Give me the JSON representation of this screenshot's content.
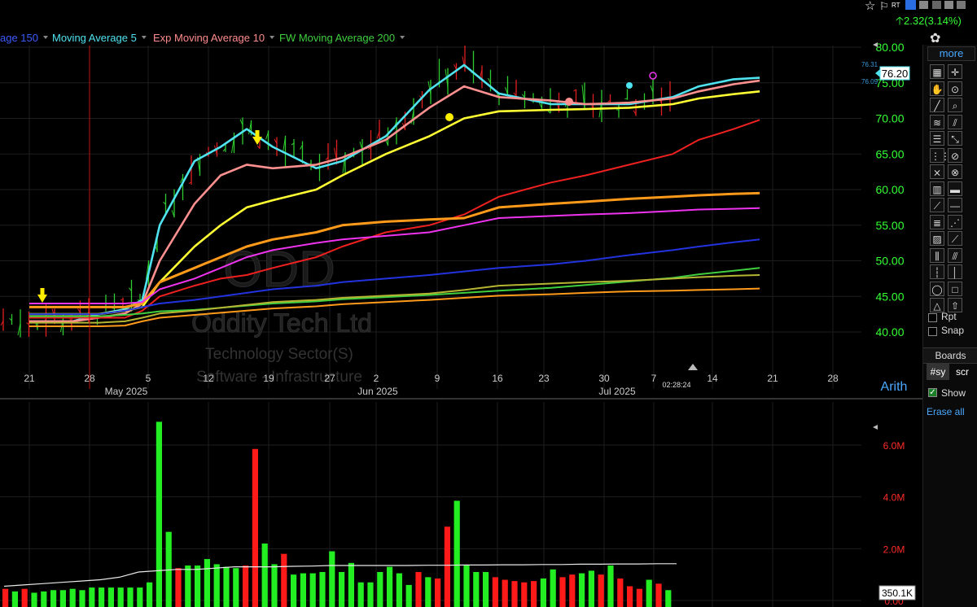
{
  "top_bar": {
    "rt_label": "RT",
    "price_change": "2.32(3.14%)",
    "indicators": [
      {
        "label": "age 150",
        "color": "#3b5bff"
      },
      {
        "label": "Moving Average 5",
        "color": "#4fe3f0"
      },
      {
        "label": "Exp Moving Average 10",
        "color": "#ff8c8c"
      },
      {
        "label": "FW Moving Average 200",
        "color": "#3fcf3f"
      }
    ]
  },
  "watermark": {
    "symbol": "ODD",
    "company": "Oddity Tech Ltd",
    "sector": "Technology Sector(S)",
    "industry": "Software - Infrastructure"
  },
  "price_panel": {
    "current_price": "76.20",
    "small_top": "76.31",
    "small_bottom": "76.09",
    "scale_mode": "Arith",
    "y_ticks": [
      "80.00",
      "75.00",
      "70.00",
      "65.00",
      "60.00",
      "55.00",
      "50.00",
      "45.00",
      "40.00"
    ],
    "x_day_labels": [
      "21",
      "28",
      "5",
      "12",
      "19",
      "27",
      "2",
      "9",
      "16",
      "23",
      "30",
      "7",
      "14",
      "21",
      "28"
    ],
    "x_month_labels": [
      "May 2025",
      "Jun 2025",
      "Jul 2025"
    ],
    "time_label": "02:28:24"
  },
  "volume_panel": {
    "y_ticks": [
      "6.0M",
      "4.0M",
      "2.0M",
      "0.00"
    ],
    "current_volume": "350.1K"
  },
  "toolbar": {
    "more": "more",
    "rpt": "Rpt",
    "snap": "Snap",
    "boards": "Boards",
    "sy": "#sy",
    "scr": "scr",
    "show": "Show",
    "erase_all": "Erase all"
  },
  "chart_data": [
    {
      "type": "line",
      "title": "",
      "xlabel": "",
      "ylabel": "",
      "ylim": [
        38,
        81
      ],
      "x_range_days": [
        "2025-04-16",
        "2025-08-01"
      ],
      "x": [
        "2025-04-17",
        "2025-04-22",
        "2025-04-25",
        "2025-04-28",
        "2025-04-30",
        "2025-05-02",
        "2025-05-06",
        "2025-05-09",
        "2025-05-12",
        "2025-05-15",
        "2025-05-20",
        "2025-05-23",
        "2025-05-28",
        "2025-06-02",
        "2025-06-06",
        "2025-06-10",
        "2025-06-16",
        "2025-06-20",
        "2025-06-25",
        "2025-06-30",
        "2025-07-03",
        "2025-07-07",
        "2025-07-10"
      ],
      "series": [
        {
          "color": "#4fe3f0",
          "values": [
            41.5,
            41.5,
            42.5,
            43.2,
            44.5,
            55.0,
            64.0,
            66.0,
            68.5,
            66.0,
            63.0,
            64.0,
            67.5,
            74.0,
            77.5,
            73.5,
            72.0,
            72.0,
            72.0,
            73.0,
            74.5,
            75.5,
            75.7
          ]
        },
        {
          "color": "#ff9090",
          "values": [
            41.5,
            41.5,
            42.0,
            42.6,
            44.0,
            50.0,
            58.0,
            62.0,
            63.5,
            63.0,
            63.5,
            64.5,
            67.0,
            71.5,
            74.5,
            73.0,
            72.5,
            72.0,
            72.2,
            72.8,
            73.8,
            74.8,
            75.3
          ]
        },
        {
          "color": "#ffff33",
          "values": [
            42.5,
            42.5,
            42.5,
            43.0,
            43.5,
            47.0,
            52.0,
            55.0,
            57.5,
            58.5,
            60.0,
            62.0,
            65.0,
            67.5,
            70.0,
            71.0,
            71.2,
            71.3,
            71.5,
            72.0,
            72.8,
            73.4,
            73.8
          ]
        },
        {
          "color": "#ee2020",
          "values": [
            42.0,
            42.0,
            42.0,
            42.0,
            43.0,
            45.0,
            46.5,
            47.5,
            48.0,
            49.0,
            50.5,
            52.0,
            54.0,
            55.0,
            56.5,
            59.0,
            61.0,
            62.0,
            63.5,
            65.0,
            67.0,
            68.5,
            69.8
          ]
        },
        {
          "color": "#ff9a1a",
          "values": [
            43.5,
            43.5,
            43.5,
            43.5,
            44.0,
            47.0,
            49.0,
            50.5,
            52.0,
            53.0,
            54.0,
            55.0,
            55.5,
            55.8,
            56.0,
            57.5,
            58.0,
            58.3,
            58.7,
            59.0,
            59.2,
            59.4,
            59.5
          ]
        },
        {
          "color": "#ee33ee",
          "values": [
            44.0,
            44.0,
            44.0,
            44.0,
            44.2,
            46.0,
            47.5,
            49.0,
            50.5,
            51.5,
            52.5,
            53.0,
            53.5,
            54.0,
            55.0,
            56.0,
            56.3,
            56.5,
            56.7,
            57.0,
            57.2,
            57.3,
            57.4
          ]
        },
        {
          "color": "#2233dd",
          "values": [
            42.5,
            42.5,
            42.5,
            43.0,
            43.5,
            44.0,
            44.5,
            45.0,
            45.5,
            46.0,
            46.5,
            47.0,
            47.5,
            48.0,
            48.5,
            49.0,
            49.5,
            50.0,
            50.8,
            51.5,
            52.0,
            52.6,
            53.0
          ]
        },
        {
          "color": "#3fcf3f",
          "values": [
            42.2,
            42.2,
            42.2,
            42.4,
            42.6,
            42.9,
            43.1,
            43.4,
            43.7,
            44.0,
            44.3,
            44.6,
            44.9,
            45.2,
            45.5,
            45.8,
            46.2,
            46.6,
            47.1,
            47.6,
            48.1,
            48.6,
            49.0
          ]
        },
        {
          "color": "#b5b533",
          "values": [
            41.3,
            41.3,
            41.3,
            41.5,
            42.0,
            42.6,
            43.0,
            43.4,
            43.8,
            44.2,
            44.5,
            44.8,
            45.1,
            45.4,
            45.9,
            46.5,
            46.8,
            47.0,
            47.2,
            47.5,
            47.7,
            47.9,
            48.0
          ]
        },
        {
          "color": "#ff9a1a",
          "values": [
            40.8,
            40.8,
            40.8,
            40.9,
            41.5,
            42.0,
            42.4,
            42.7,
            43.0,
            43.3,
            43.6,
            43.9,
            44.2,
            44.5,
            44.8,
            45.1,
            45.3,
            45.5,
            45.7,
            45.8,
            45.9,
            46.0,
            46.1
          ]
        }
      ]
    },
    {
      "type": "bar",
      "title": "",
      "ylim": [
        0,
        7.2
      ],
      "ylabel": "",
      "values": [
        0.45,
        0.35,
        0.45,
        0.3,
        0.35,
        0.4,
        0.4,
        0.45,
        0.4,
        0.5,
        0.5,
        0.5,
        0.5,
        0.5,
        0.5,
        0.7,
        6.9,
        2.65,
        1.25,
        1.35,
        1.35,
        1.6,
        1.4,
        1.3,
        1.25,
        1.35,
        5.85,
        2.2,
        1.4,
        1.8,
        1.0,
        1.05,
        1.05,
        1.1,
        1.9,
        1.1,
        1.45,
        0.7,
        0.7,
        1.1,
        1.3,
        1.05,
        0.6,
        1.1,
        0.9,
        0.85,
        2.85,
        3.85,
        1.35,
        1.1,
        1.1,
        0.9,
        0.8,
        0.75,
        0.7,
        0.75,
        0.85,
        1.2,
        0.9,
        1.0,
        1.05,
        1.15,
        1.0,
        1.35,
        0.85,
        0.55,
        0.45,
        0.8,
        0.65,
        0.4
      ],
      "colors": [
        "red",
        "green",
        "red",
        "green",
        "green",
        "green",
        "green",
        "green",
        "green",
        "green",
        "green",
        "green",
        "green",
        "green",
        "green",
        "green",
        "green",
        "green",
        "red",
        "green",
        "green",
        "green",
        "green",
        "green",
        "green",
        "red",
        "red",
        "green",
        "green",
        "red",
        "green",
        "green",
        "green",
        "green",
        "green",
        "green",
        "green",
        "green",
        "green",
        "green",
        "green",
        "green",
        "green",
        "red",
        "green",
        "red",
        "red",
        "green",
        "green",
        "green",
        "green",
        "red",
        "red",
        "red",
        "red",
        "red",
        "green",
        "green",
        "red",
        "red",
        "green",
        "green",
        "red",
        "green",
        "red",
        "red",
        "red",
        "green",
        "red",
        "green"
      ],
      "average": [
        0.55,
        0.6,
        0.65,
        0.7,
        0.75,
        0.8,
        0.9,
        1.1,
        1.15,
        1.2,
        1.2,
        1.25,
        1.3,
        1.3,
        1.3,
        1.32,
        1.33,
        1.35,
        1.35,
        1.35,
        1.35,
        1.35,
        1.36,
        1.36,
        1.37,
        1.37,
        1.38,
        1.38,
        1.39,
        1.39,
        1.4,
        1.4,
        1.41,
        1.41,
        1.42,
        1.42
      ]
    }
  ]
}
